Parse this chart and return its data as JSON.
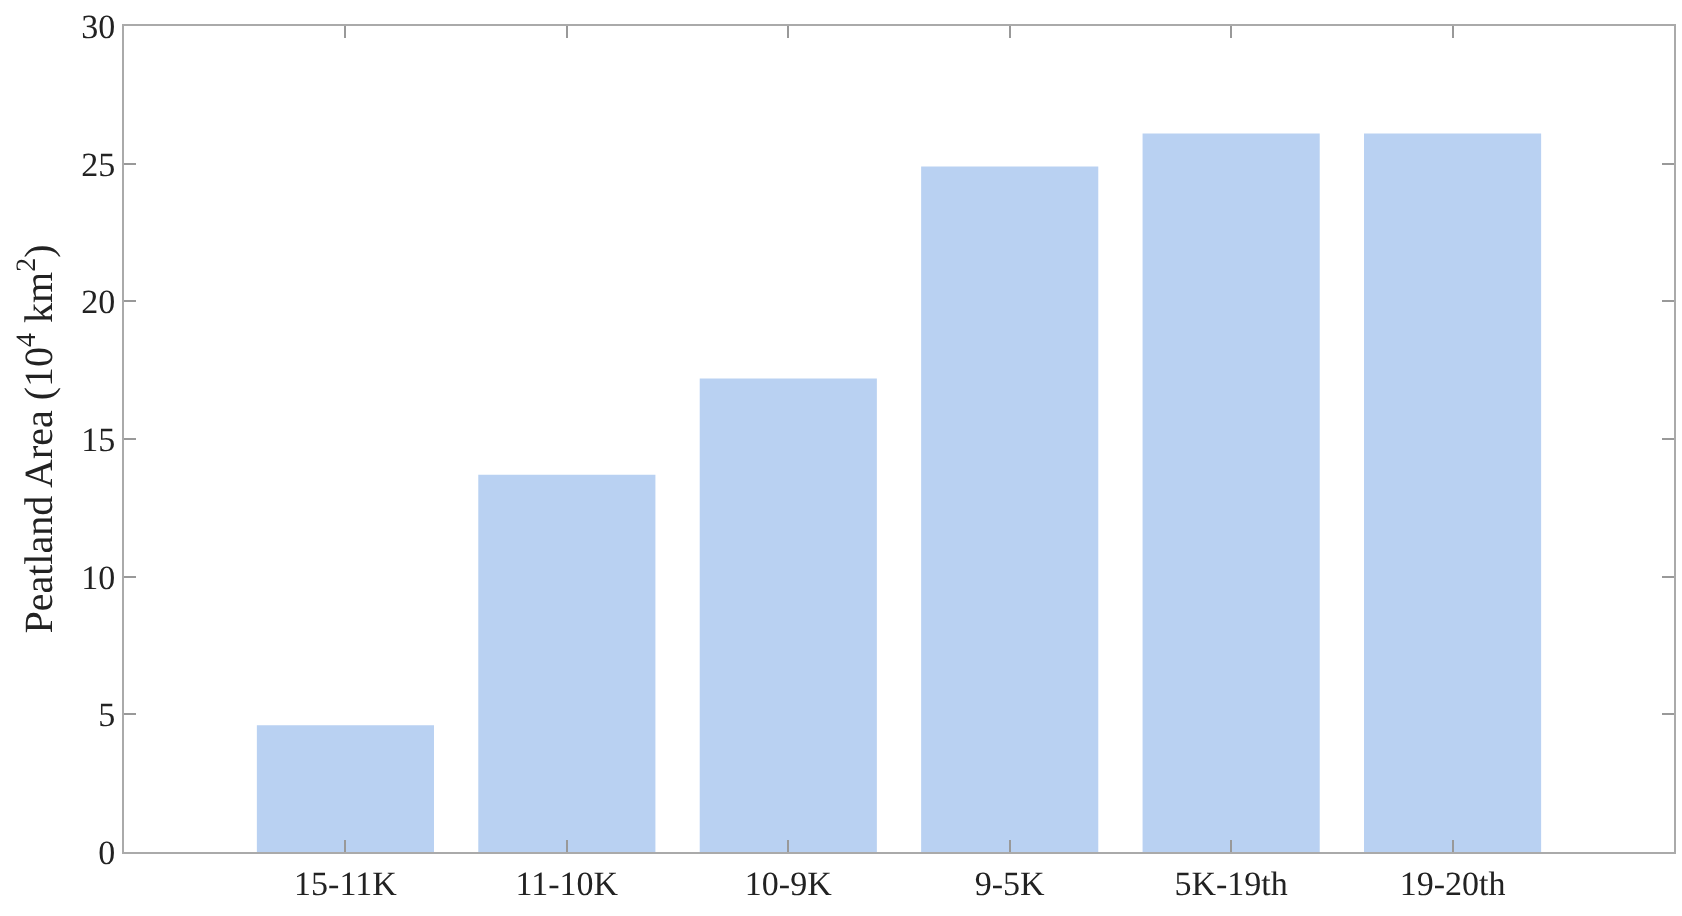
{
  "chart_data": {
    "type": "bar",
    "ylabel": "Peatland Area (10$^{4}$ km$^{2}$)",
    "categories": [
      "15-11K",
      "11-10K",
      "10-9K",
      "9-5K",
      "5K-19th",
      "19-20th"
    ],
    "values": [
      4.6,
      13.7,
      17.2,
      24.9,
      26.1,
      26.1
    ],
    "color": "#b9d1f2",
    "ylim": [
      0,
      30
    ],
    "yticks": [
      0,
      5,
      10,
      15,
      20,
      25,
      30
    ],
    "grid": false
  }
}
